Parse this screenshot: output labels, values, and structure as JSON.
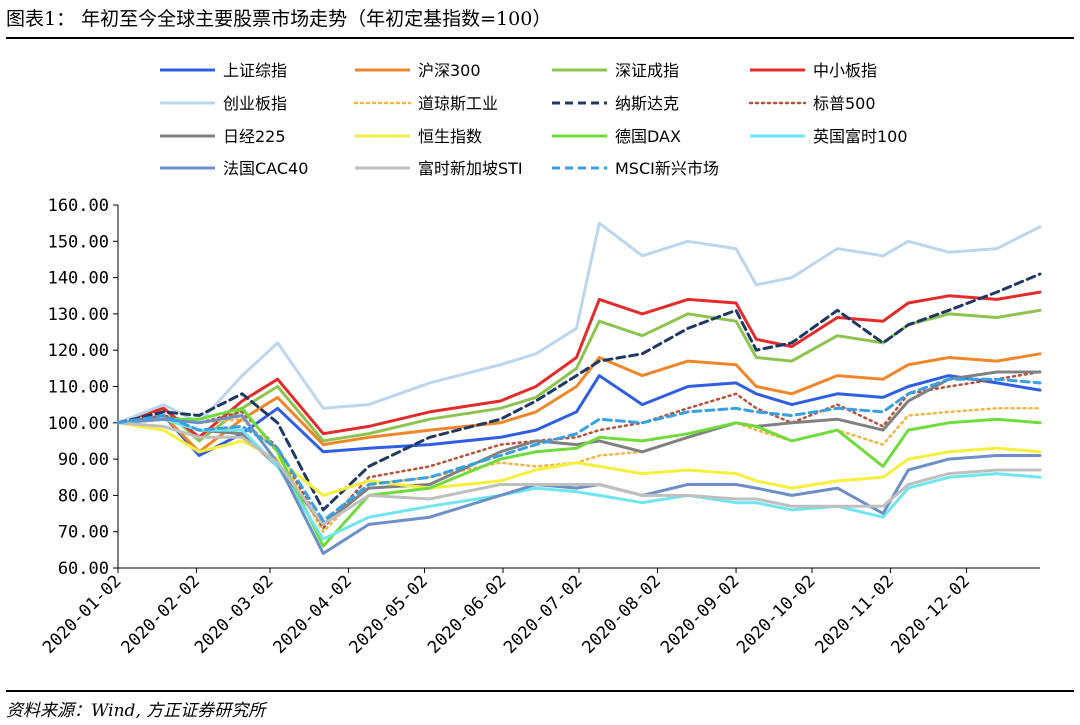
{
  "figure": {
    "title": "图表1：  年初至今全球主要股票市场走势（年初定基指数=100）",
    "source": "资料来源：Wind, 方正证券研究所"
  },
  "chart_data": {
    "type": "line",
    "title": "年初至今全球主要股票市场走势（年初定基指数=100）",
    "xlabel": "",
    "ylabel": "",
    "ylim": [
      60,
      160
    ],
    "yticks": [
      "60.00",
      "70.00",
      "80.00",
      "90.00",
      "100.00",
      "110.00",
      "120.00",
      "130.00",
      "140.00",
      "150.00",
      "160.00"
    ],
    "xticks": [
      "2020-01-02",
      "2020-02-02",
      "2020-03-02",
      "2020-04-02",
      "2020-05-02",
      "2020-06-02",
      "2020-07-02",
      "2020-08-02",
      "2020-09-02",
      "2020-10-02",
      "2020-11-02",
      "2020-12-02"
    ],
    "x_range": [
      "2020-01-02",
      "2020-12-31"
    ],
    "grid": false,
    "legend_position": "top",
    "x": [
      "2020-01-02",
      "2020-01-20",
      "2020-02-03",
      "2020-02-20",
      "2020-03-05",
      "2020-03-23",
      "2020-04-10",
      "2020-05-04",
      "2020-06-01",
      "2020-06-15",
      "2020-07-01",
      "2020-07-10",
      "2020-07-27",
      "2020-08-14",
      "2020-09-02",
      "2020-09-10",
      "2020-09-24",
      "2020-10-12",
      "2020-10-30",
      "2020-11-09",
      "2020-11-25",
      "2020-12-14",
      "2020-12-31"
    ],
    "series": [
      {
        "name": "上证综指",
        "color": "#2f5fe0",
        "dash": "solid",
        "width": 3,
        "values": [
          100,
          102,
          91,
          97,
          104,
          92,
          93,
          94,
          96,
          98,
          103,
          113,
          105,
          110,
          111,
          108,
          105,
          108,
          107,
          110,
          113,
          111,
          109
        ]
      },
      {
        "name": "沪深300",
        "color": "#f0862a",
        "dash": "solid",
        "width": 3,
        "values": [
          100,
          102,
          92,
          101,
          107,
          94,
          96,
          98,
          100,
          103,
          110,
          118,
          113,
          117,
          116,
          110,
          108,
          113,
          112,
          116,
          118,
          117,
          119
        ]
      },
      {
        "name": "深证成指",
        "color": "#8cc44f",
        "dash": "solid",
        "width": 3,
        "values": [
          100,
          104,
          95,
          104,
          110,
          95,
          97,
          101,
          104,
          107,
          115,
          128,
          124,
          130,
          128,
          118,
          117,
          124,
          122,
          127,
          130,
          129,
          131
        ]
      },
      {
        "name": "中小板指",
        "color": "#e32b2b",
        "dash": "solid",
        "width": 3,
        "values": [
          100,
          104,
          96,
          106,
          112,
          97,
          99,
          103,
          106,
          110,
          118,
          134,
          130,
          134,
          133,
          123,
          121,
          129,
          128,
          133,
          135,
          134,
          136
        ]
      },
      {
        "name": "创业板指",
        "color": "#bcd6ee",
        "dash": "solid",
        "width": 3,
        "values": [
          100,
          105,
          100,
          113,
          122,
          104,
          105,
          111,
          116,
          119,
          126,
          155,
          146,
          150,
          148,
          138,
          140,
          148,
          146,
          150,
          147,
          148,
          154
        ]
      },
      {
        "name": "道琼斯工业",
        "color": "#f5b544",
        "dash": "dot",
        "width": 2.5,
        "values": [
          100,
          102,
          100,
          101,
          92,
          70,
          83,
          85,
          89,
          88,
          89,
          91,
          92,
          96,
          100,
          98,
          95,
          98,
          94,
          102,
          103,
          104,
          104
        ]
      },
      {
        "name": "纳斯达克",
        "color": "#1f3864",
        "dash": "dash",
        "width": 3,
        "values": [
          100,
          103,
          102,
          108,
          100,
          76,
          88,
          96,
          101,
          106,
          113,
          117,
          119,
          126,
          131,
          120,
          122,
          131,
          122,
          127,
          131,
          136,
          141
        ]
      },
      {
        "name": "标普500",
        "color": "#b5533c",
        "dash": "dot",
        "width": 2.5,
        "values": [
          100,
          102,
          100,
          103,
          93,
          71,
          85,
          88,
          94,
          95,
          96,
          98,
          100,
          104,
          108,
          104,
          100,
          105,
          99,
          108,
          110,
          112,
          114
        ]
      },
      {
        "name": "日经225",
        "color": "#808080",
        "dash": "solid",
        "width": 3,
        "values": [
          100,
          101,
          98,
          97,
          88,
          72,
          82,
          83,
          92,
          95,
          94,
          95,
          92,
          96,
          100,
          99,
          100,
          101,
          98,
          106,
          112,
          114,
          114
        ]
      },
      {
        "name": "恒生指数",
        "color": "#f6ef3c",
        "dash": "solid",
        "width": 3,
        "values": [
          100,
          98,
          92,
          95,
          90,
          80,
          84,
          82,
          84,
          87,
          89,
          88,
          86,
          87,
          86,
          84,
          82,
          84,
          85,
          90,
          92,
          93,
          92
        ]
      },
      {
        "name": "德国DAX",
        "color": "#6fdc3c",
        "dash": "solid",
        "width": 3,
        "values": [
          100,
          101,
          101,
          104,
          92,
          66,
          80,
          82,
          90,
          92,
          93,
          96,
          95,
          97,
          100,
          99,
          95,
          98,
          88,
          98,
          100,
          101,
          100
        ]
      },
      {
        "name": "英国富时100",
        "color": "#6ee6ef",
        "dash": "solid",
        "width": 3,
        "values": [
          100,
          101,
          98,
          98,
          88,
          68,
          74,
          77,
          80,
          82,
          81,
          80,
          78,
          80,
          78,
          78,
          76,
          77,
          74,
          82,
          85,
          86,
          85
        ]
      },
      {
        "name": "法国CAC40",
        "color": "#6c8fc7",
        "dash": "solid",
        "width": 3,
        "values": [
          100,
          101,
          100,
          102,
          89,
          64,
          72,
          74,
          80,
          83,
          82,
          83,
          80,
          83,
          83,
          82,
          80,
          82,
          75,
          87,
          90,
          91,
          91
        ]
      },
      {
        "name": "富时新加坡STI",
        "color": "#bfbfbf",
        "dash": "solid",
        "width": 3,
        "values": [
          100,
          99,
          96,
          96,
          89,
          72,
          80,
          79,
          83,
          83,
          83,
          83,
          80,
          80,
          79,
          79,
          77,
          77,
          77,
          83,
          86,
          87,
          87
        ]
      },
      {
        "name": "MSCI新兴市场",
        "color": "#3aa0e4",
        "dash": "dash",
        "width": 3,
        "values": [
          100,
          102,
          98,
          99,
          93,
          73,
          83,
          85,
          91,
          94,
          97,
          101,
          100,
          103,
          104,
          103,
          102,
          104,
          103,
          108,
          112,
          112,
          111
        ]
      }
    ]
  }
}
